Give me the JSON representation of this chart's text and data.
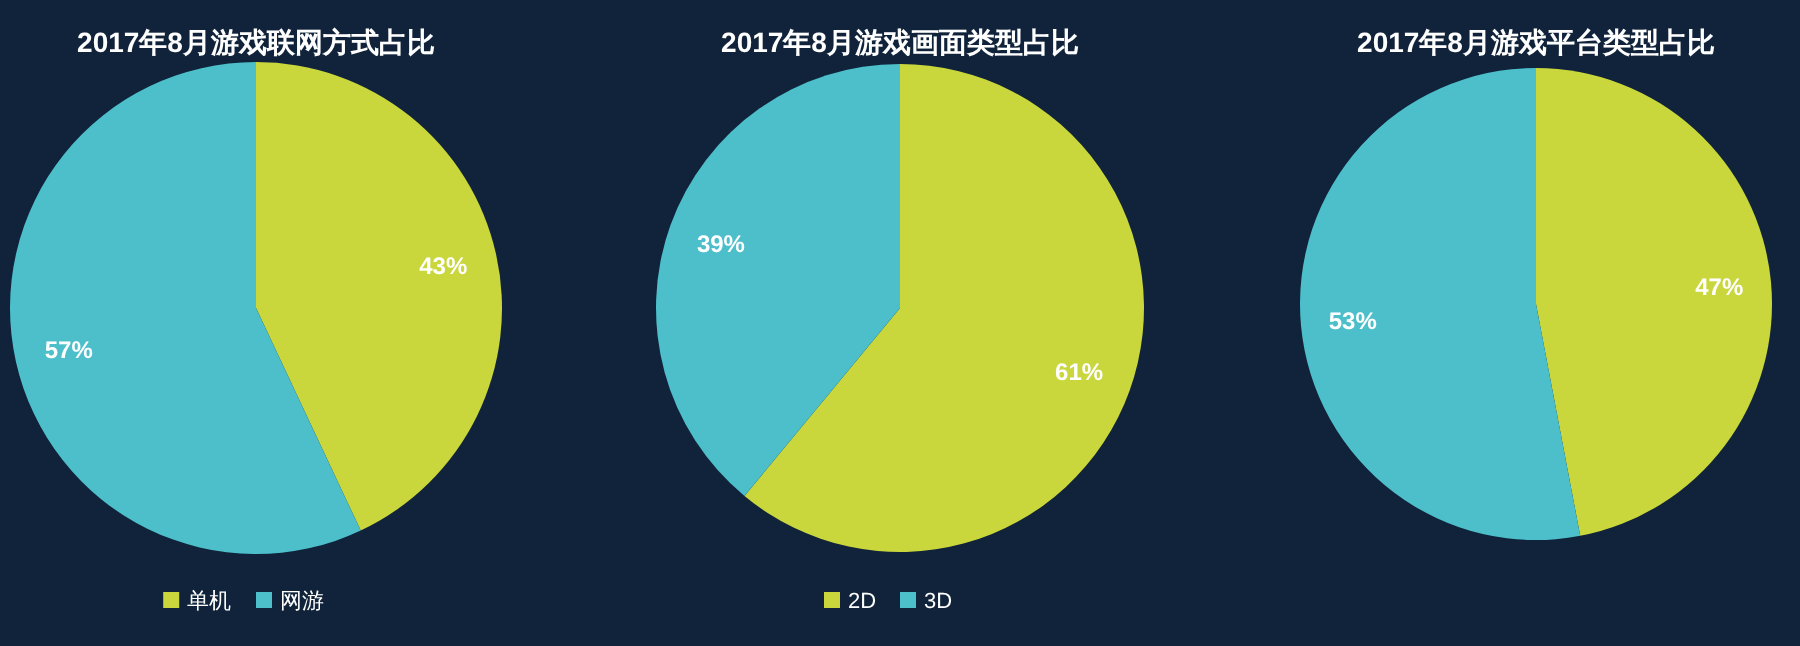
{
  "chart_data": [
    {
      "type": "pie",
      "title": "2017年8月游戏联网方式占比",
      "categories": [
        "单机",
        "网游"
      ],
      "values": [
        43,
        57
      ],
      "colors": [
        "#c9d63c",
        "#4cbfca"
      ],
      "value_labels": [
        "43%",
        "57%"
      ],
      "legend": "bottom"
    },
    {
      "type": "pie",
      "title": "2017年8月游戏画面类型占比",
      "categories": [
        "2D",
        "3D"
      ],
      "values": [
        61,
        39
      ],
      "colors": [
        "#c9d63c",
        "#4cbfca"
      ],
      "value_labels": [
        "61%",
        "39%"
      ],
      "legend": "bottom"
    },
    {
      "type": "pie",
      "title": "2017年8月游戏平台类型占比",
      "categories": [
        null,
        null
      ],
      "values": [
        47,
        53
      ],
      "colors": [
        "#c9d63c",
        "#4cbfca"
      ],
      "value_labels": [
        "47%",
        "53%"
      ]
    }
  ]
}
